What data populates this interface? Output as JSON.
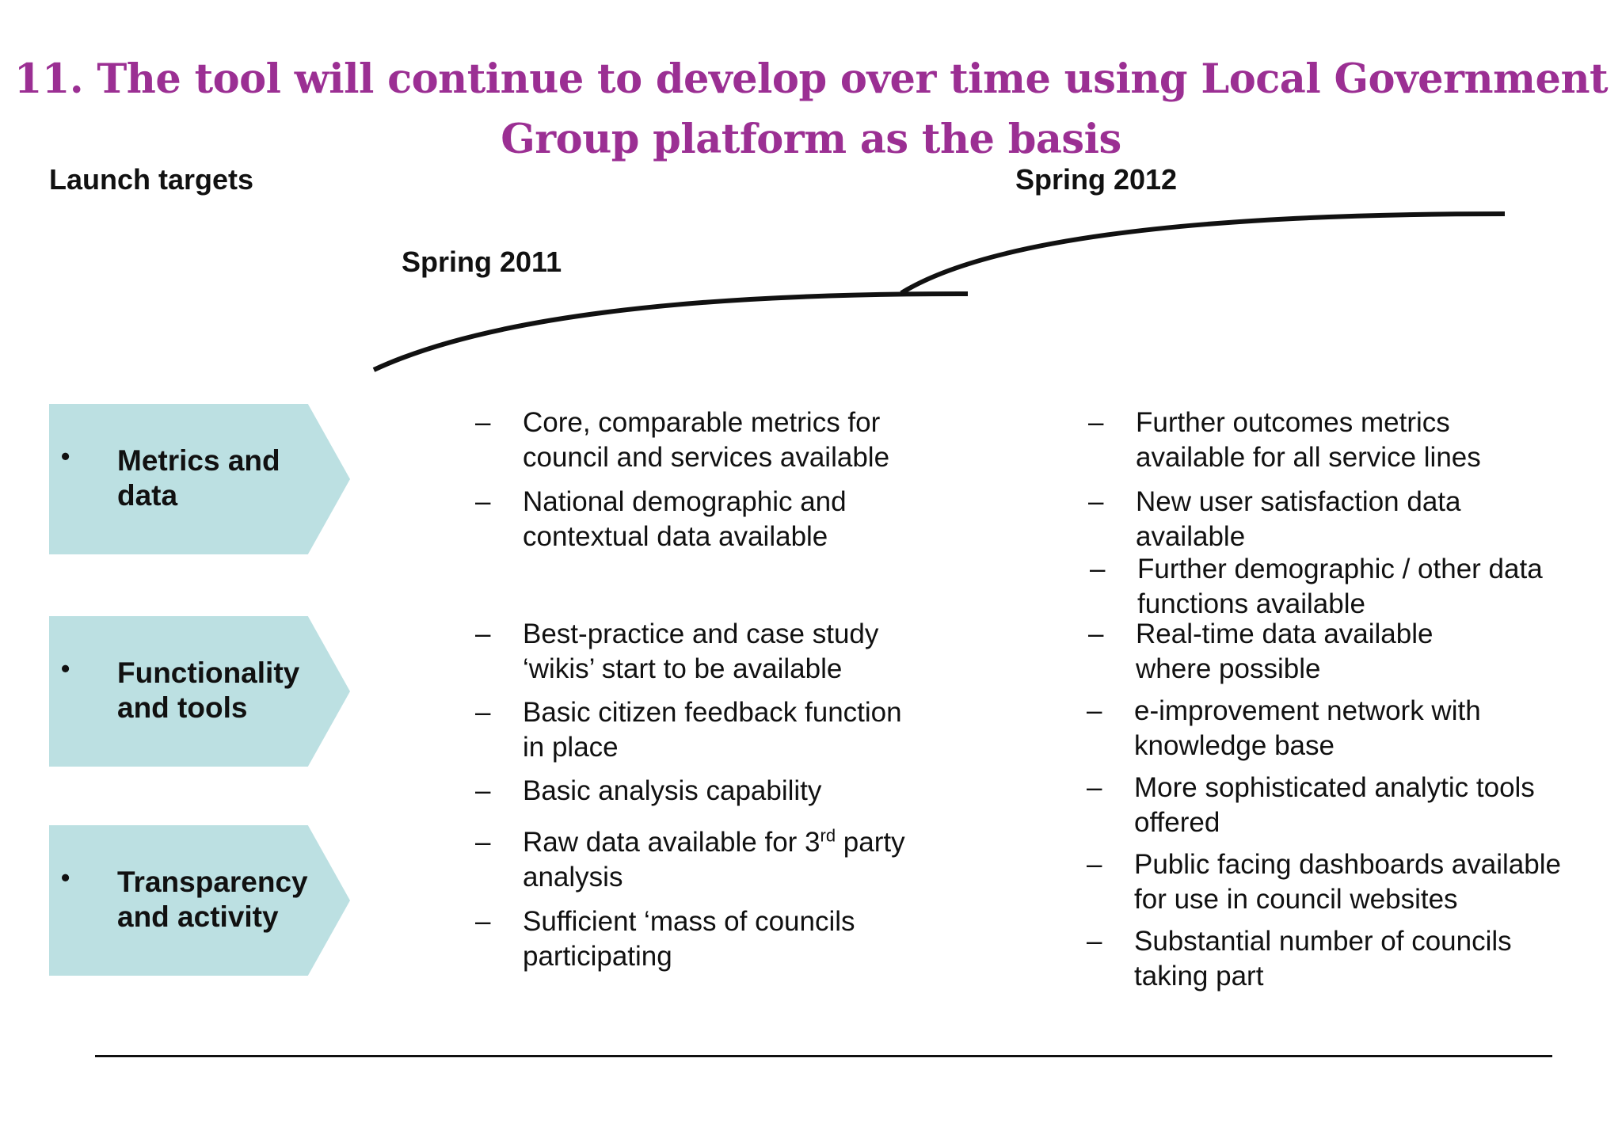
{
  "title": {
    "line1": "11. The tool will continue to develop  over time using Local Government",
    "line2": "Group platform as the basis"
  },
  "labels": {
    "launch_targets": "Launch targets",
    "spring_2012": "Spring 2012",
    "spring_2011": "Spring 2011"
  },
  "categories": [
    {
      "bullet": "•",
      "line1": "Metrics and",
      "line2": "data"
    },
    {
      "bullet": "•",
      "line1": "Functionality",
      "line2": "and tools"
    },
    {
      "bullet": "•",
      "line1": "Transparency",
      "line2": "and activity"
    }
  ],
  "dash": "–",
  "spring_2011_items": [
    {
      "line1": "Core, comparable metrics for",
      "line2": "council and services available"
    },
    {
      "line1": "National demographic and",
      "line2": "contextual data available"
    },
    {
      "line1": "Best-practice and case study",
      "line2": "‘wikis’ start to be available"
    },
    {
      "line1": "Basic citizen feedback function",
      "line2": "in place"
    },
    {
      "line1": "Basic analysis capability",
      "line2": ""
    },
    {
      "line1a": "Raw data available for 3",
      "sup": "rd",
      "line1b": " party",
      "line2": "analysis"
    },
    {
      "line1": "Sufficient ‘mass of councils",
      "line2": "participating"
    }
  ],
  "spring_2012_items": [
    {
      "line1": "Further outcomes metrics",
      "line2": "available for all service lines"
    },
    {
      "line1": "New user satisfaction data",
      "line2": "available"
    },
    {
      "line1": "Further demographic / other data",
      "line2": "functions available"
    },
    {
      "line1": "Real-time data available",
      "line2": "where possible"
    },
    {
      "line1": "e-improvement network with",
      "line2": "knowledge base"
    },
    {
      "line1": "More sophisticated analytic tools",
      "line2": "offered"
    },
    {
      "line1": "Public facing dashboards available",
      "line2": "for use in council websites"
    },
    {
      "line1": "Substantial number of councils",
      "line2": "taking part"
    }
  ],
  "colors": {
    "title": "#9b2f93",
    "chevron_fill": "#bce0e2",
    "text": "#111111"
  }
}
